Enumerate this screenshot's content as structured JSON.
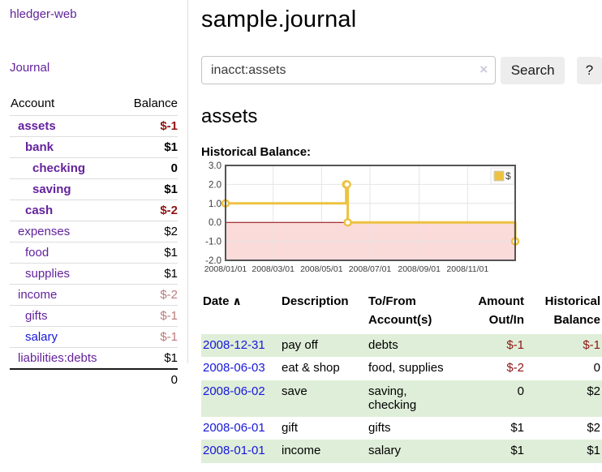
{
  "app": {
    "brand": "hledger-web",
    "nav_journal": "Journal"
  },
  "colors": {
    "accent_purple": "#63229c",
    "link_blue": "#1717d9",
    "negative_red": "#8e1515",
    "negative_soft_red": "#bb7b7c",
    "row_green": "#dfeed8",
    "chart_yellow": "#edc240",
    "chart_negative_fill": "#fbdada",
    "chart_zero_line": "#8b0000"
  },
  "icons": {
    "sort_asc": "∧",
    "clear_search": "×"
  },
  "sidebar": {
    "headers": {
      "account": "Account",
      "balance": "Balance"
    },
    "accounts": [
      {
        "name": "assets",
        "depth": 1,
        "name_style": "purple bold",
        "balance": "$-1",
        "bal_style": "neg-strong"
      },
      {
        "name": "bank",
        "depth": 2,
        "name_style": "purple bold",
        "balance": "$1",
        "bal_style": "num-bold"
      },
      {
        "name": "checking",
        "depth": 3,
        "name_style": "purple bold",
        "balance": "0",
        "bal_style": "num-bold"
      },
      {
        "name": "saving",
        "depth": 3,
        "name_style": "purple bold",
        "balance": "$1",
        "bal_style": "num-bold"
      },
      {
        "name": "cash",
        "depth": 2,
        "name_style": "purple bold",
        "balance": "$-2",
        "bal_style": "neg-strong"
      },
      {
        "name": "expenses",
        "depth": 1,
        "name_style": "purple",
        "balance": "$2",
        "bal_style": "num"
      },
      {
        "name": "food",
        "depth": 2,
        "name_style": "purple",
        "balance": "$1",
        "bal_style": "num"
      },
      {
        "name": "supplies",
        "depth": 2,
        "name_style": "purple",
        "balance": "$1",
        "bal_style": "num"
      },
      {
        "name": "income",
        "depth": 1,
        "name_style": "purple",
        "balance": "$-2",
        "bal_style": "neg-soft"
      },
      {
        "name": "gifts",
        "depth": 2,
        "name_style": "purple",
        "balance": "$-1",
        "bal_style": "neg-soft"
      },
      {
        "name": "salary",
        "depth": 2,
        "name_style": "blue",
        "balance": "$-1",
        "bal_style": "neg-soft"
      },
      {
        "name": "liabilities:debts",
        "depth": 1,
        "name_style": "purple",
        "balance": "$1",
        "bal_style": "num"
      }
    ],
    "total": "0"
  },
  "header": {
    "title": "sample.journal"
  },
  "search": {
    "value": "inacct:assets",
    "button_label": "Search",
    "help_label": "?"
  },
  "main": {
    "account_title": "assets",
    "chart_label": "Historical Balance:"
  },
  "chart_data": {
    "type": "line",
    "steps": true,
    "title": "Historical Balance of assets",
    "legend": "$",
    "legend_position": "top-right",
    "grid": true,
    "ylim": [
      -2,
      3
    ],
    "ytick_labels": [
      "3.0",
      "2.0",
      "1.0",
      "0.0",
      "-1.0",
      "-2.0"
    ],
    "yticks": [
      3,
      2,
      1,
      0,
      -1,
      -2
    ],
    "xtick_labels": [
      "2008/01/01",
      "2008/03/01",
      "2008/05/01",
      "2008/07/01",
      "2008/09/01",
      "2008/11/01"
    ],
    "xticks": [
      "2008-01-01",
      "2008-03-01",
      "2008-05-01",
      "2008-07-01",
      "2008-09-01",
      "2008-11-01"
    ],
    "xrange": [
      "2008-01-01",
      "2008-12-31"
    ],
    "series": [
      {
        "name": "$",
        "color": "#edc240",
        "points": [
          [
            "2008-01-01",
            1
          ],
          [
            "2008-06-01",
            2
          ],
          [
            "2008-06-02",
            2
          ],
          [
            "2008-06-03",
            0
          ],
          [
            "2008-12-31",
            -1
          ]
        ]
      }
    ]
  },
  "register": {
    "columns": [
      {
        "lines": [
          "Date"
        ],
        "align": "l",
        "sortable": true
      },
      {
        "lines": [
          "Description"
        ],
        "align": "l"
      },
      {
        "lines": [
          "To/From",
          "Account(s)"
        ],
        "align": "l"
      },
      {
        "lines": [
          "Amount",
          "Out/In"
        ],
        "align": "r"
      },
      {
        "lines": [
          "Historical",
          "Balance"
        ],
        "align": "r"
      }
    ],
    "rows": [
      {
        "date": "2008-12-31",
        "description": "pay off",
        "accounts": "debts",
        "amount": "$-1",
        "amount_neg": true,
        "balance": "$-1",
        "balance_neg": true
      },
      {
        "date": "2008-06-03",
        "description": "eat & shop",
        "accounts": "food, supplies",
        "amount": "$-2",
        "amount_neg": true,
        "balance": "0",
        "balance_neg": false
      },
      {
        "date": "2008-06-02",
        "description": "save",
        "accounts": "saving, checking",
        "amount": "0",
        "amount_neg": false,
        "balance": "$2",
        "balance_neg": false
      },
      {
        "date": "2008-06-01",
        "description": "gift",
        "accounts": "gifts",
        "amount": "$1",
        "amount_neg": false,
        "balance": "$2",
        "balance_neg": false
      },
      {
        "date": "2008-01-01",
        "description": "income",
        "accounts": "salary",
        "amount": "$1",
        "amount_neg": false,
        "balance": "$1",
        "balance_neg": false
      }
    ]
  }
}
